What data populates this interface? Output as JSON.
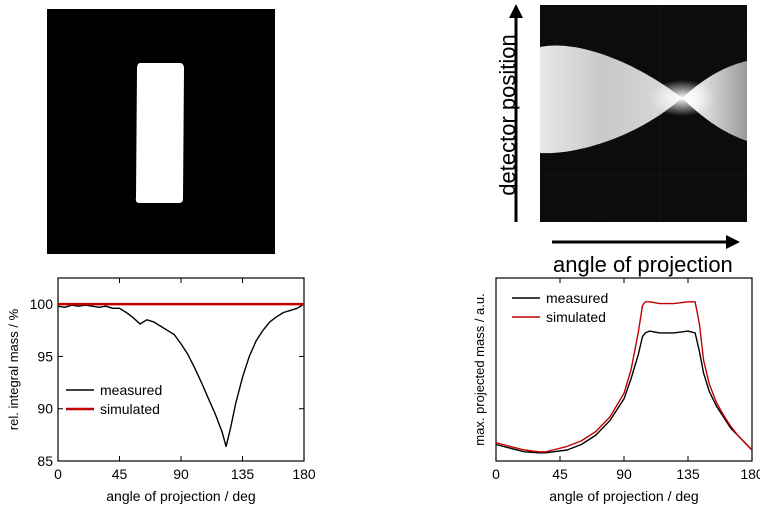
{
  "top_right": {
    "ylabel": "detector position",
    "xlabel": "angle of projection"
  },
  "chart_data": [
    {
      "type": "line",
      "xlabel": "angle of projection / deg",
      "ylabel": "rel. integral mass / %",
      "xlim": [
        0,
        180
      ],
      "ylim": [
        85,
        102.5
      ],
      "xticks": [
        0,
        45,
        90,
        135,
        180
      ],
      "yticks": [
        85,
        90,
        95,
        100
      ],
      "legend_position": "bottom-left",
      "series": [
        {
          "name": "measured",
          "color": "#000000",
          "x": [
            0,
            5,
            10,
            15,
            20,
            25,
            30,
            35,
            40,
            45,
            50,
            55,
            60,
            65,
            70,
            75,
            80,
            85,
            90,
            95,
            100,
            105,
            110,
            115,
            120,
            123,
            126,
            130,
            135,
            140,
            145,
            150,
            155,
            160,
            165,
            170,
            175,
            180
          ],
          "y": [
            99.8,
            99.7,
            99.9,
            99.8,
            99.9,
            99.8,
            99.7,
            99.8,
            99.6,
            99.6,
            99.2,
            98.7,
            98.1,
            98.5,
            98.3,
            97.9,
            97.5,
            97.1,
            96.2,
            95.2,
            93.9,
            92.5,
            91.0,
            89.5,
            87.8,
            86.4,
            88.0,
            90.5,
            93.0,
            95.0,
            96.5,
            97.5,
            98.3,
            98.8,
            99.2,
            99.4,
            99.6,
            100.0
          ]
        },
        {
          "name": "simulated",
          "color": "#c00000",
          "x": [
            0,
            180
          ],
          "y": [
            100,
            100
          ]
        }
      ]
    },
    {
      "type": "line",
      "xlabel": "angle of projection / deg",
      "ylabel": "max. projected mass / a.u.",
      "xlim": [
        0,
        180
      ],
      "ylim": [
        0,
        100
      ],
      "xticks": [
        0,
        45,
        90,
        135,
        180
      ],
      "yticks": [],
      "legend_position": "top-left",
      "series": [
        {
          "name": "measured",
          "color": "#000000",
          "x": [
            0,
            10,
            20,
            30,
            35,
            40,
            50,
            60,
            70,
            80,
            90,
            95,
            100,
            103,
            105,
            108,
            115,
            125,
            135,
            140,
            143,
            146,
            150,
            155,
            160,
            165,
            170,
            175,
            180
          ],
          "y": [
            9,
            7,
            5,
            4.5,
            4.5,
            5,
            6,
            9,
            14,
            22,
            34,
            45,
            58,
            68,
            70,
            71,
            70,
            70,
            71,
            70,
            60,
            48,
            38,
            30,
            24,
            18,
            14,
            10,
            6
          ]
        },
        {
          "name": "simulated",
          "color": "#c00000",
          "x": [
            0,
            10,
            20,
            30,
            35,
            40,
            50,
            60,
            70,
            80,
            90,
            95,
            100,
            103,
            105,
            108,
            115,
            125,
            135,
            140,
            143,
            146,
            150,
            155,
            160,
            165,
            170,
            175,
            180
          ],
          "y": [
            10,
            8,
            6,
            5,
            5,
            6,
            8,
            11,
            16,
            24,
            37,
            50,
            70,
            85,
            87,
            87,
            86,
            86,
            87,
            87,
            75,
            55,
            42,
            32,
            25,
            19,
            14,
            10,
            6
          ]
        }
      ]
    }
  ]
}
